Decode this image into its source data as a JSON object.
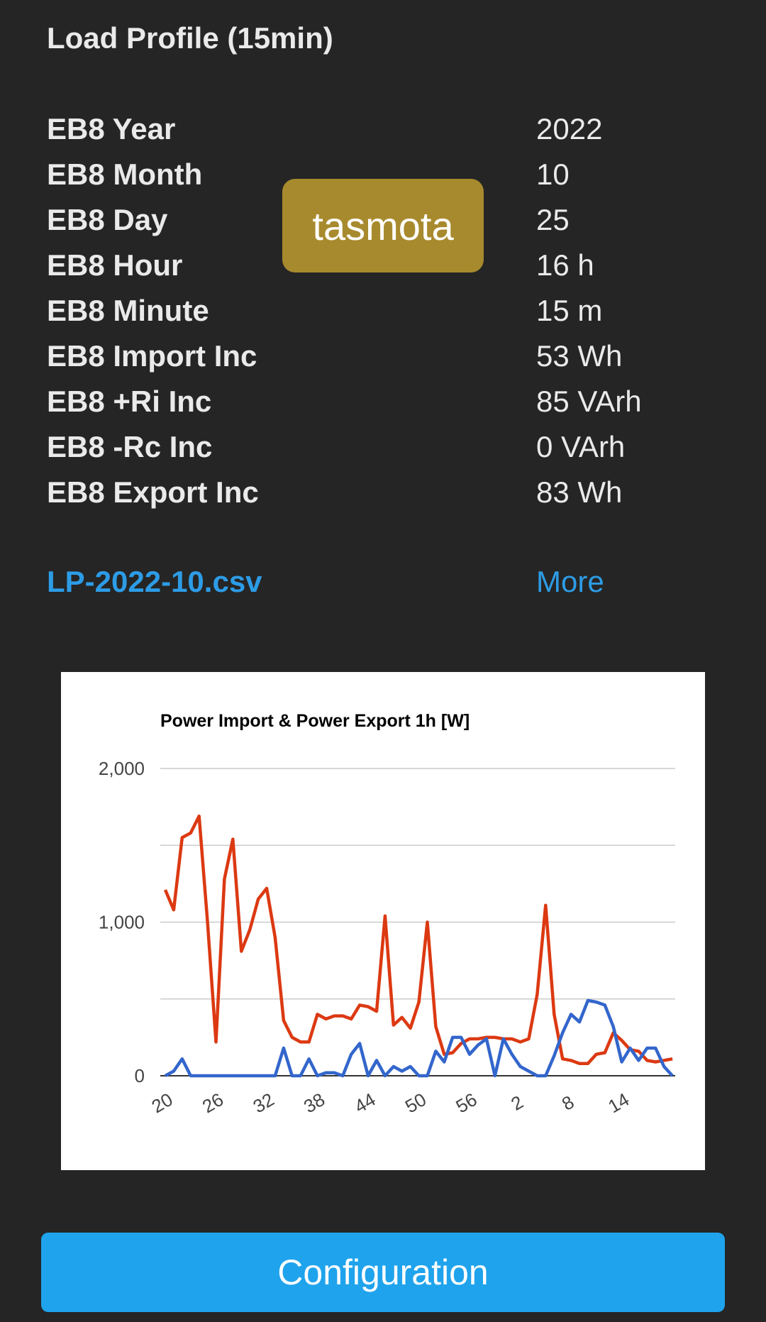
{
  "section": {
    "title": "Load Profile (15min)"
  },
  "readings": [
    {
      "label": "EB8 Year",
      "value": "2022"
    },
    {
      "label": "EB8 Month",
      "value": "10"
    },
    {
      "label": "EB8 Day",
      "value": "25"
    },
    {
      "label": "EB8 Hour",
      "value": "16 h"
    },
    {
      "label": "EB8 Minute",
      "value": "15 m"
    },
    {
      "label": "EB8 Import Inc",
      "value": "53 Wh"
    },
    {
      "label": "EB8 +Ri Inc",
      "value": "85 VArh"
    },
    {
      "label": "EB8 -Rc Inc",
      "value": "0 VArh"
    },
    {
      "label": "EB8 Export Inc",
      "value": "83 Wh"
    }
  ],
  "badge": {
    "text": "tasmota",
    "color": "#a88a2e"
  },
  "links": {
    "csv": "LP-2022-10.csv",
    "more": "More"
  },
  "button": {
    "label": "Configuration",
    "color": "#1fa3ec"
  },
  "chart_data": {
    "type": "line",
    "title": "Power Import & Power Export 1h [W]",
    "xlabel": "",
    "ylabel": "",
    "ylim": [
      0,
      2000
    ],
    "yticks": [
      0,
      1000,
      2000
    ],
    "gridlines": [
      0,
      500,
      1000,
      1500,
      2000
    ],
    "grid": true,
    "legend": "none",
    "x_tick_labels": [
      "20",
      "26",
      "32",
      "38",
      "44",
      "50",
      "56",
      "2",
      "8",
      "14"
    ],
    "x_tick_index": [
      0,
      6,
      12,
      18,
      24,
      30,
      36,
      42,
      48,
      54
    ],
    "num_points": 61,
    "series": [
      {
        "color": "#dc3912",
        "values": [
          1210,
          1080,
          1550,
          1580,
          1690,
          1000,
          220,
          1280,
          1540,
          810,
          950,
          1150,
          1220,
          900,
          360,
          250,
          220,
          220,
          400,
          370,
          390,
          390,
          370,
          460,
          450,
          420,
          1040,
          330,
          380,
          310,
          480,
          1000,
          320,
          140,
          150,
          210,
          240,
          240,
          250,
          250,
          240,
          240,
          220,
          240,
          530,
          1110,
          400,
          110,
          100,
          80,
          80,
          140,
          150,
          280,
          230,
          170,
          160,
          100,
          90,
          100,
          110
        ]
      },
      {
        "color": "#3366cc",
        "values": [
          0,
          30,
          110,
          0,
          0,
          0,
          0,
          0,
          0,
          0,
          0,
          0,
          0,
          0,
          180,
          0,
          0,
          110,
          0,
          20,
          20,
          0,
          140,
          210,
          0,
          100,
          0,
          60,
          30,
          60,
          0,
          0,
          160,
          90,
          250,
          250,
          140,
          200,
          240,
          0,
          240,
          140,
          60,
          30,
          0,
          0,
          130,
          280,
          400,
          350,
          490,
          480,
          460,
          320,
          90,
          180,
          100,
          180,
          180,
          60,
          0
        ]
      }
    ]
  }
}
